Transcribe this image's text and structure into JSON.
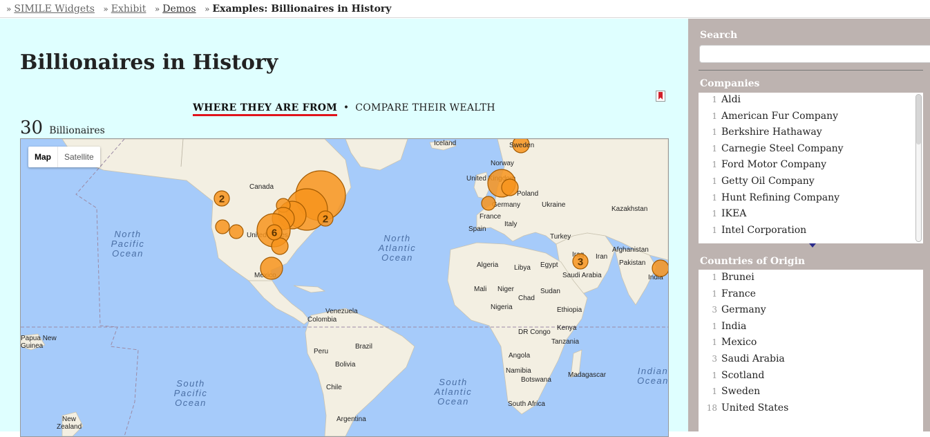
{
  "breadcrumb": [
    {
      "label": "SIMILE Widgets",
      "link": true
    },
    {
      "label": "Exhibit",
      "link": true
    },
    {
      "label": "Demos",
      "link": true
    },
    {
      "label": "Examples: Billionaires in History",
      "link": false
    }
  ],
  "breadcrumb_separator": "»",
  "title": "Billionaires in History",
  "views": {
    "active": "WHERE THEY ARE FROM",
    "separator": "•",
    "other": "COMPARE THEIR WEALTH"
  },
  "count": {
    "number": "30",
    "label": "Billionaires"
  },
  "map": {
    "type_buttons": {
      "map": "Map",
      "satellite": "Satellite"
    },
    "place_labels": {
      "iceland": "Iceland",
      "sweden": "Sweden",
      "norway": "Norway",
      "uk": "United Kingdom",
      "poland": "Poland",
      "germany": "Germany",
      "ukraine": "Ukraine",
      "france": "France",
      "kazakhstan": "Kazakhstan",
      "spain": "Spain",
      "italy": "Italy",
      "turkey": "Turkey",
      "afghanistan": "Afghanistan",
      "iraq": "Iraq",
      "iran": "Iran",
      "pakistan": "Pakistan",
      "algeria": "Algeria",
      "libya": "Libya",
      "egypt": "Egypt",
      "saudi": "Saudi Arabia",
      "india": "India",
      "mali": "Mali",
      "niger": "Niger",
      "chad": "Chad",
      "sudan": "Sudan",
      "nigeria": "Nigeria",
      "ethiopia": "Ethiopia",
      "kenya": "Kenya",
      "drc": "DR Congo",
      "tanzania": "Tanzania",
      "angola": "Angola",
      "namibia": "Namibia",
      "botswana": "Botswana",
      "madagascar": "Madagascar",
      "southafrica": "South Africa",
      "canada": "Canada",
      "us": "United States",
      "mexico": "Mexico",
      "venezuela": "Venezuela",
      "colombia": "Colombia",
      "brazil": "Brazil",
      "peru": "Peru",
      "bolivia": "Bolivia",
      "chile": "Chile",
      "argentina": "Argentina",
      "png1": "Papua New",
      "png2": "Guinea",
      "nz1": "New",
      "nz2": "Zealand"
    },
    "ocean_labels": {
      "np1": "North",
      "np2": "Pacific",
      "np3": "Ocean",
      "na1": "North",
      "na2": "Atlantic",
      "na3": "Ocean",
      "sp1": "South",
      "sp2": "Pacific",
      "sp3": "Ocean",
      "sa1": "South",
      "sa2": "Atlantic",
      "sa3": "Ocean",
      "io1": "Indian",
      "io2": "Ocean"
    },
    "cluster_counts": {
      "west_canada": "2",
      "us_central": "6",
      "us_east": "2",
      "saudi": "3"
    }
  },
  "colors": {
    "main_bg": "#dfffff",
    "sidebar_bg": "#bdb3b0",
    "marker": "#f7941d",
    "active_underline": "#e0131b",
    "ocean": "#a6cbfa",
    "land": "#f3efe2"
  },
  "sidebar": {
    "search_title": "Search",
    "companies_title": "Companies",
    "companies": [
      {
        "count": "1",
        "label": "Aldi"
      },
      {
        "count": "1",
        "label": "American Fur Company"
      },
      {
        "count": "1",
        "label": "Berkshire Hathaway"
      },
      {
        "count": "1",
        "label": "Carnegie Steel Company"
      },
      {
        "count": "1",
        "label": "Ford Motor Company"
      },
      {
        "count": "1",
        "label": "Getty Oil Company"
      },
      {
        "count": "1",
        "label": "Hunt Refining Company"
      },
      {
        "count": "1",
        "label": "IKEA"
      },
      {
        "count": "1",
        "label": "Intel Corporation"
      }
    ],
    "countries_title": "Countries of Origin",
    "countries": [
      {
        "count": "1",
        "label": "Brunei"
      },
      {
        "count": "1",
        "label": "France"
      },
      {
        "count": "3",
        "label": "Germany"
      },
      {
        "count": "1",
        "label": "India"
      },
      {
        "count": "1",
        "label": "Mexico"
      },
      {
        "count": "3",
        "label": "Saudi Arabia"
      },
      {
        "count": "1",
        "label": "Scotland"
      },
      {
        "count": "1",
        "label": "Sweden"
      },
      {
        "count": "18",
        "label": "United States"
      }
    ]
  }
}
